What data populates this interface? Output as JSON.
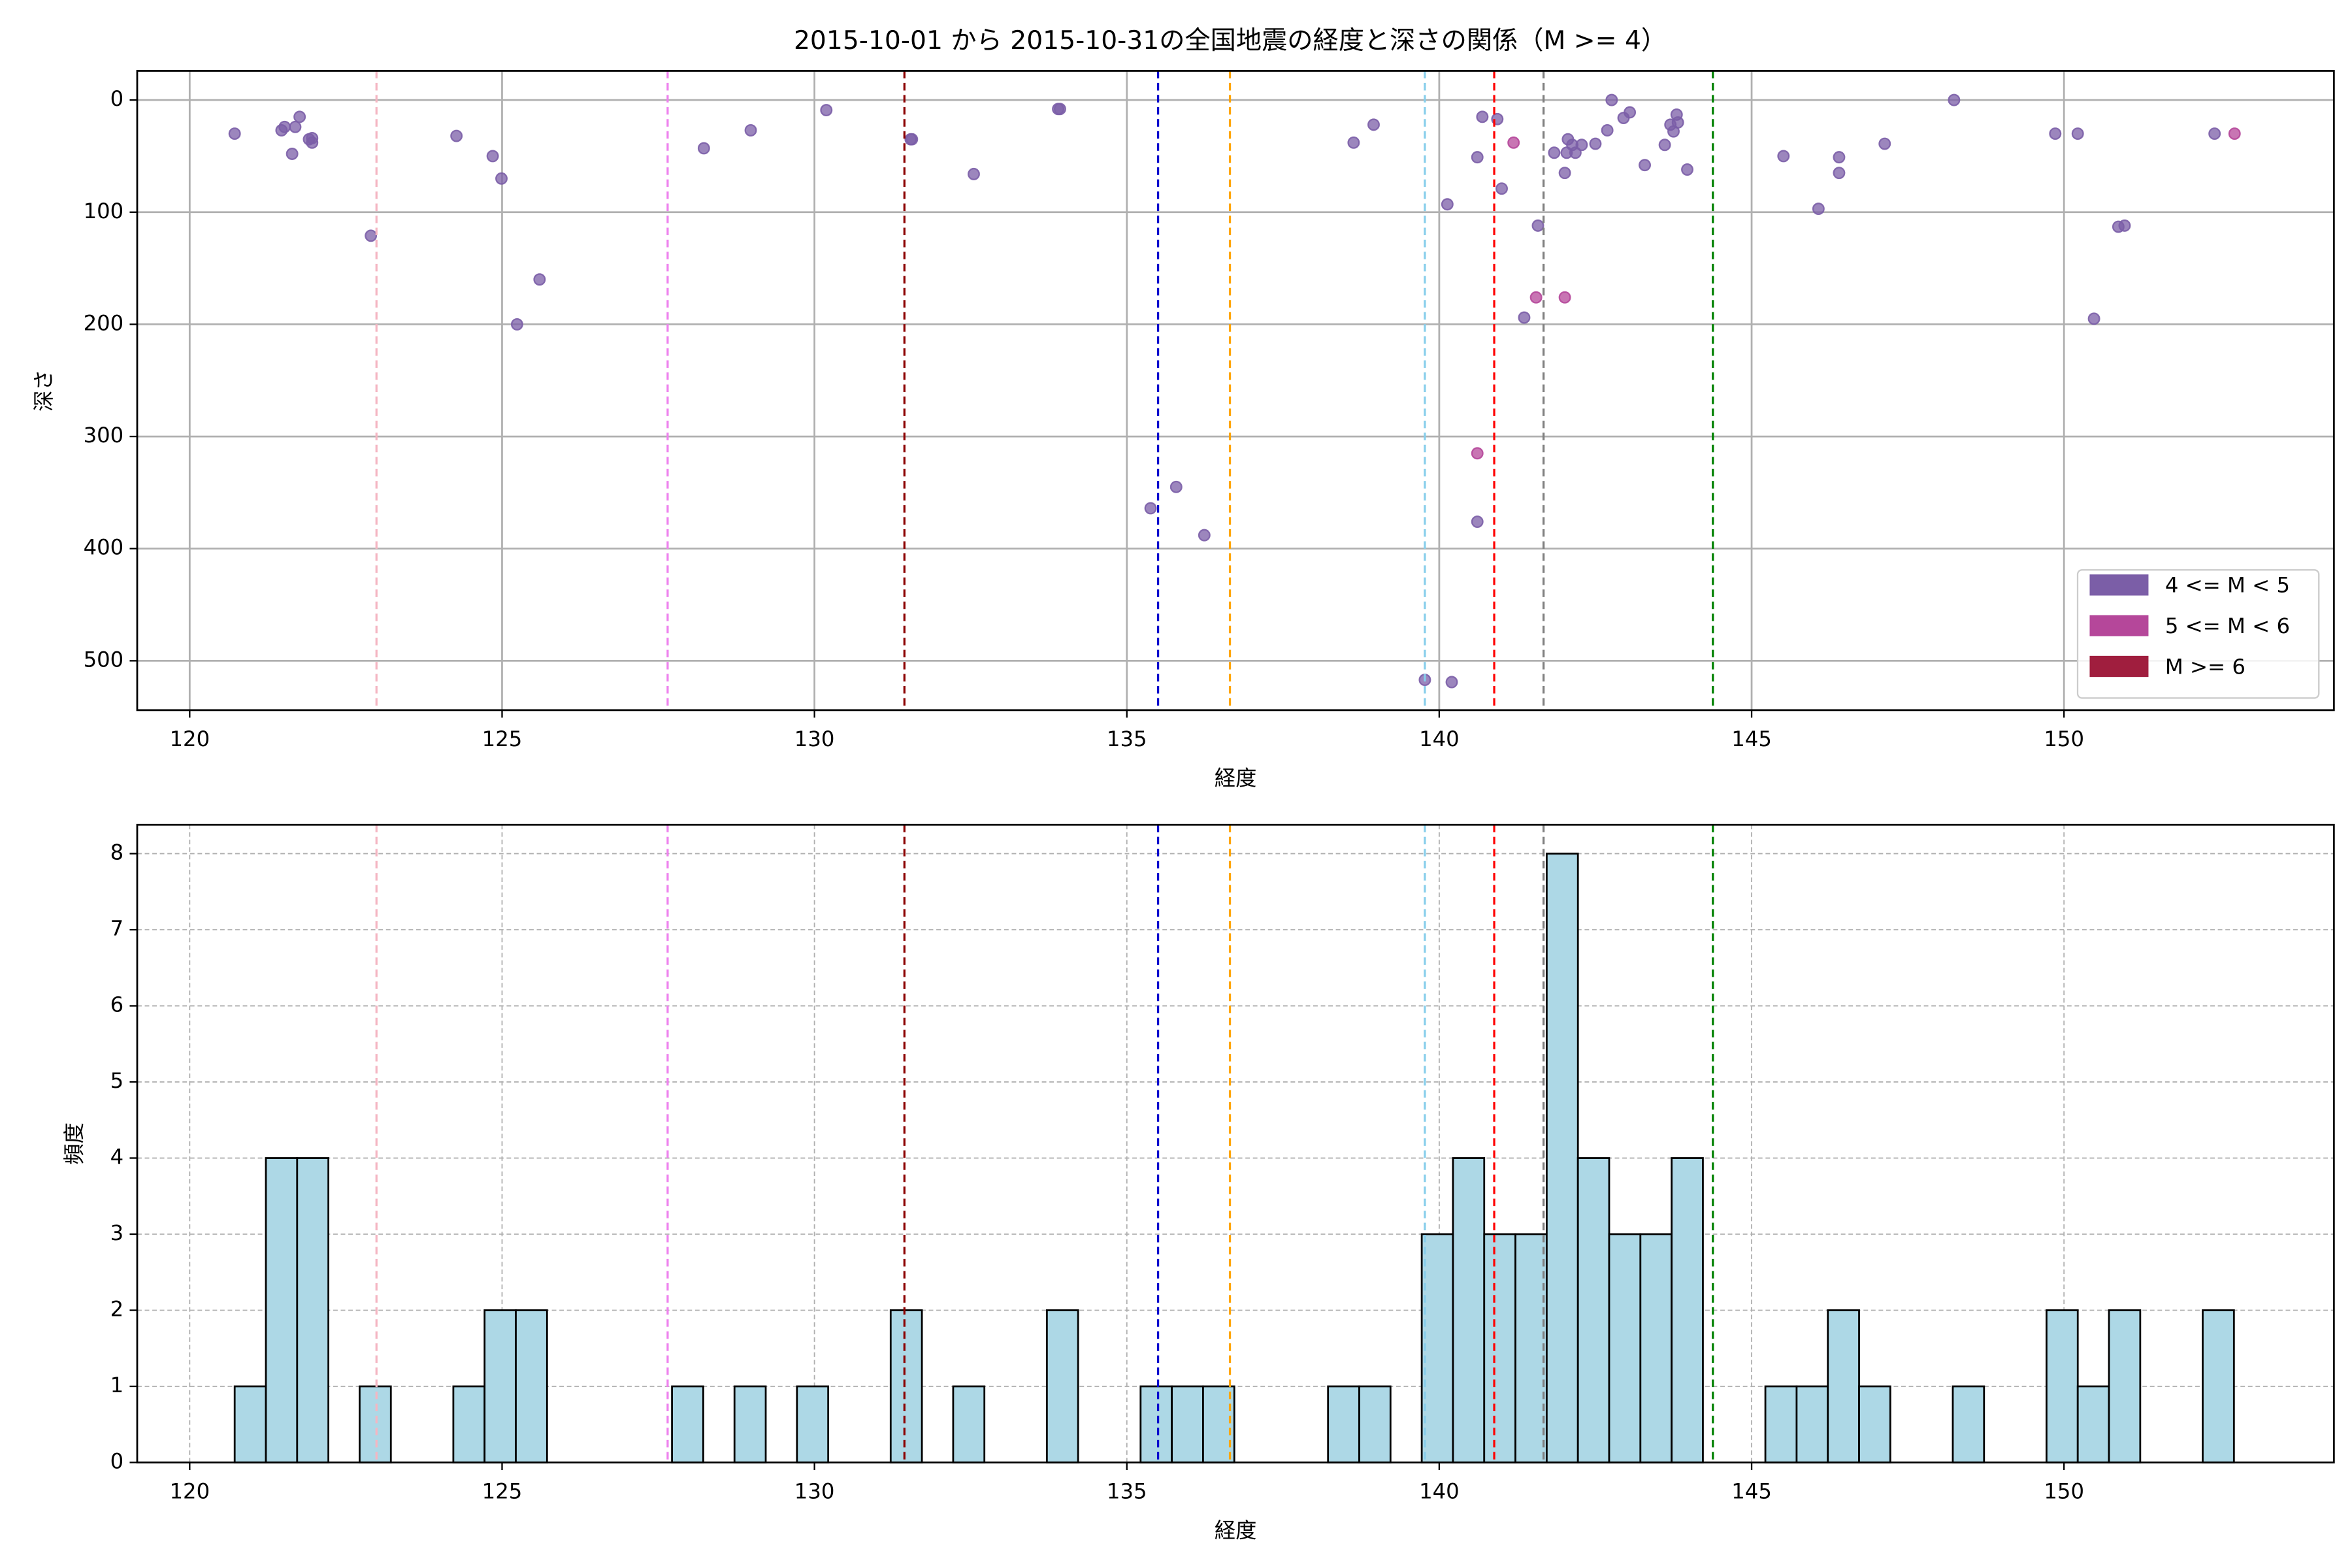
{
  "chart_data": [
    {
      "type": "scatter",
      "title": "2015-10-01 から 2015-10-31の全国地震の経度と深さの関係（M >= 4）",
      "xlabel": "経度",
      "ylabel": "深さ",
      "xlim": [
        119.16,
        154.32
      ],
      "xticks": [
        120,
        125,
        130,
        135,
        140,
        145,
        150
      ],
      "ylim": [
        544,
        -26
      ],
      "yticks": [
        0,
        100,
        200,
        300,
        400,
        500
      ],
      "grid": true,
      "legend": "lower right",
      "series": [
        {
          "name": "4 <= M < 5",
          "color": "#7b5ea7",
          "x": [
            120.72,
            121.47,
            121.52,
            121.69,
            121.76,
            121.64,
            121.91,
            121.96,
            121.96,
            122.9,
            124.27,
            124.85,
            124.99,
            125.6,
            125.24,
            128.23,
            128.98,
            130.19,
            131.54,
            131.56,
            132.55,
            133.9,
            133.93,
            135.38,
            135.79,
            136.24,
            138.63,
            138.95,
            139.77,
            140.2,
            140.13,
            140.61,
            140.69,
            140.93,
            141.0,
            140.61,
            141.36,
            141.58,
            141.84,
            142.01,
            142.06,
            142.04,
            142.13,
            142.18,
            142.28,
            142.5,
            142.69,
            142.76,
            142.95,
            143.05,
            143.29,
            143.61,
            143.7,
            143.8,
            143.82,
            143.75,
            143.97,
            145.51,
            146.07,
            146.4,
            146.4,
            147.13,
            148.24,
            149.86,
            150.22,
            150.87,
            150.97,
            150.48,
            152.41
          ],
          "values": [
            30,
            27,
            24,
            24,
            15,
            48,
            35,
            38,
            34,
            121,
            32,
            50,
            70,
            160,
            200,
            43,
            27,
            9,
            35,
            35,
            66,
            8,
            8,
            364,
            345,
            388,
            38,
            22,
            517,
            519,
            93,
            51,
            15,
            17,
            79,
            376,
            194,
            112,
            47,
            65,
            35,
            47,
            40,
            47,
            40,
            39,
            27,
            0,
            16,
            11,
            58,
            40,
            22,
            13,
            20,
            28,
            62,
            50,
            97,
            51,
            65,
            39,
            0,
            30,
            30,
            113,
            112,
            195,
            30
          ]
        },
        {
          "name": "5 <= M < 6",
          "color": "#b5479a",
          "x": [
            141.19,
            140.61,
            141.55,
            142.01,
            152.73
          ],
          "values": [
            38,
            315,
            176,
            176,
            30
          ]
        },
        {
          "name": "M >= 6",
          "color": "#a01e3e",
          "x": [],
          "values": []
        }
      ],
      "vlines": [
        {
          "x": 122.99,
          "color": "#f4b6c2"
        },
        {
          "x": 127.65,
          "color": "#ee82ee"
        },
        {
          "x": 131.44,
          "color": "#8b0000"
        },
        {
          "x": 135.5,
          "color": "#0000cd"
        },
        {
          "x": 136.65,
          "color": "#ffa500"
        },
        {
          "x": 139.77,
          "color": "#87ceeb"
        },
        {
          "x": 140.88,
          "color": "#ff0000"
        },
        {
          "x": 141.67,
          "color": "#808080"
        },
        {
          "x": 144.38,
          "color": "#008000"
        }
      ]
    },
    {
      "type": "histogram",
      "xlabel": "経度",
      "ylabel": "頻度",
      "xlim": [
        119.16,
        154.32
      ],
      "xticks": [
        120,
        125,
        130,
        135,
        140,
        145,
        150
      ],
      "ylim": [
        0,
        8.38
      ],
      "yticks": [
        0,
        1,
        2,
        3,
        4,
        5,
        6,
        7,
        8
      ],
      "grid": true,
      "color": "#add8e6",
      "bins": [
        120.72,
        121.22,
        121.72,
        122.22,
        122.72,
        123.22,
        123.72,
        124.22,
        124.72,
        125.22,
        125.72,
        126.22,
        126.72,
        127.22,
        127.72,
        128.22,
        128.72,
        129.22,
        129.72,
        130.22,
        130.72,
        131.22,
        131.72,
        132.22,
        132.72,
        133.22,
        133.72,
        134.22,
        134.72,
        135.22,
        135.72,
        136.22,
        136.72,
        137.22,
        137.72,
        138.22,
        138.72,
        139.22,
        139.72,
        140.22,
        140.72,
        141.22,
        141.72,
        142.22,
        142.72,
        143.22,
        143.72,
        144.22,
        144.72,
        145.22,
        145.72,
        146.22,
        146.72,
        147.22,
        147.72,
        148.22,
        148.72,
        149.22,
        149.72,
        150.22,
        150.72,
        151.22,
        151.72,
        152.22,
        152.72
      ],
      "values": [
        1,
        4,
        4,
        0,
        1,
        0,
        0,
        1,
        2,
        2,
        0,
        0,
        0,
        0,
        1,
        0,
        1,
        0,
        1,
        0,
        0,
        2,
        0,
        1,
        0,
        0,
        2,
        0,
        0,
        1,
        1,
        1,
        0,
        0,
        0,
        1,
        1,
        0,
        3,
        4,
        3,
        3,
        8,
        4,
        3,
        3,
        4,
        0,
        0,
        1,
        1,
        2,
        1,
        0,
        0,
        1,
        0,
        0,
        2,
        1,
        2,
        0,
        0,
        2
      ],
      "vlines": [
        {
          "x": 122.99,
          "color": "#f4b6c2"
        },
        {
          "x": 127.65,
          "color": "#ee82ee"
        },
        {
          "x": 131.44,
          "color": "#8b0000"
        },
        {
          "x": 135.5,
          "color": "#0000cd"
        },
        {
          "x": 136.65,
          "color": "#ffa500"
        },
        {
          "x": 139.77,
          "color": "#87ceeb"
        },
        {
          "x": 140.88,
          "color": "#ff0000"
        },
        {
          "x": 141.67,
          "color": "#808080"
        },
        {
          "x": 144.38,
          "color": "#008000"
        }
      ]
    }
  ]
}
